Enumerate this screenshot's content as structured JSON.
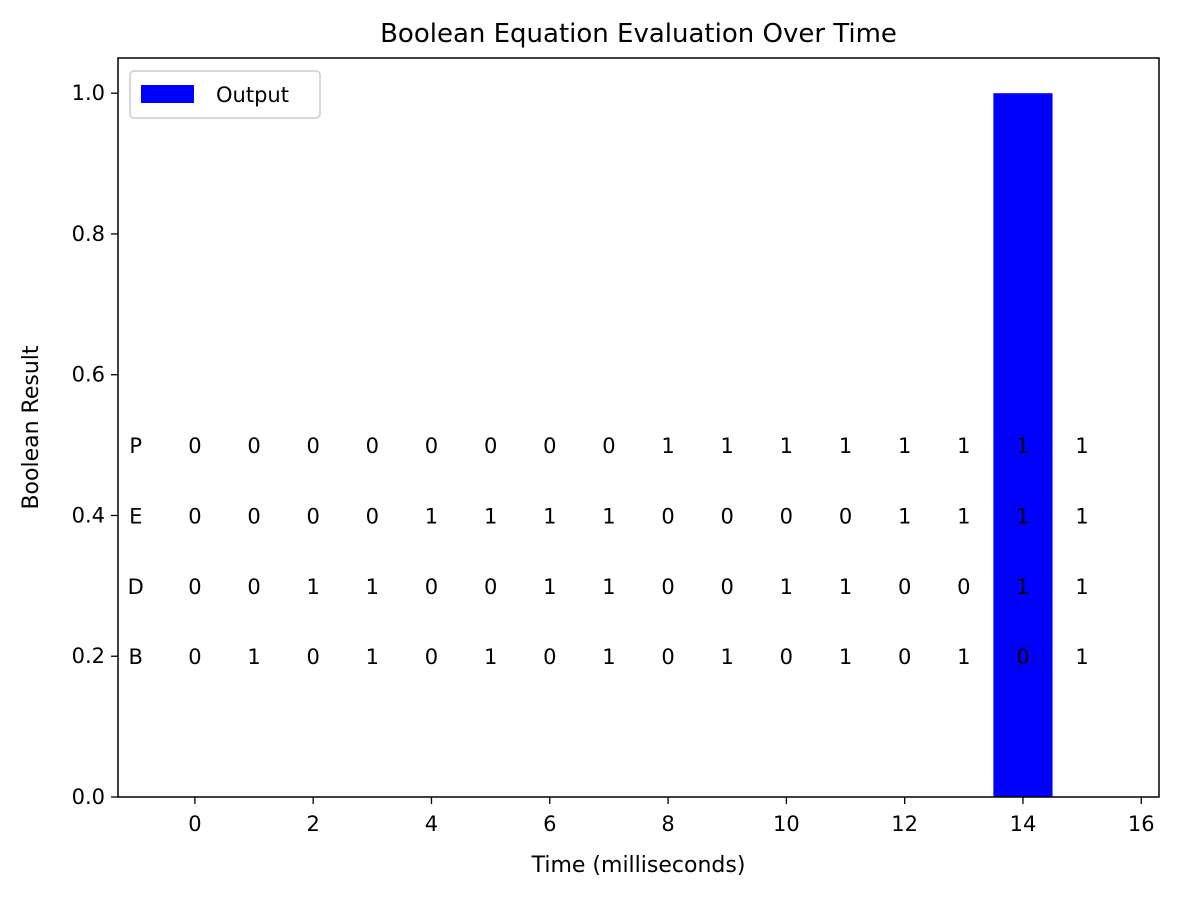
{
  "chart_data": {
    "type": "bar",
    "title": "Boolean Equation Evaluation Over Time",
    "xlabel": "Time (milliseconds)",
    "ylabel": "Boolean Result",
    "x": [
      0,
      1,
      2,
      3,
      4,
      5,
      6,
      7,
      8,
      9,
      10,
      11,
      12,
      13,
      14,
      15
    ],
    "series": [
      {
        "name": "Output",
        "color": "#0000ff",
        "values": [
          0,
          0,
          0,
          0,
          0,
          0,
          0,
          0,
          0,
          0,
          0,
          0,
          0,
          0,
          1,
          0
        ]
      }
    ],
    "xlim": [
      -1.3,
      16.3
    ],
    "ylim": [
      0,
      1.05
    ],
    "xticks": [
      0,
      2,
      4,
      6,
      8,
      10,
      12,
      14,
      16
    ],
    "yticks": [
      "0.0",
      "0.2",
      "0.4",
      "0.6",
      "0.8",
      "1.0"
    ],
    "grid": false,
    "legend": "top-left",
    "annotations": [
      {
        "label": "P",
        "y": 0.5,
        "values": [
          0,
          0,
          0,
          0,
          0,
          0,
          0,
          0,
          1,
          1,
          1,
          1,
          1,
          1,
          1,
          1
        ]
      },
      {
        "label": "E",
        "y": 0.4,
        "values": [
          0,
          0,
          0,
          0,
          1,
          1,
          1,
          1,
          0,
          0,
          0,
          0,
          1,
          1,
          1,
          1
        ]
      },
      {
        "label": "D",
        "y": 0.3,
        "values": [
          0,
          0,
          1,
          1,
          0,
          0,
          1,
          1,
          0,
          0,
          1,
          1,
          0,
          0,
          1,
          1
        ]
      },
      {
        "label": "B",
        "y": 0.2,
        "values": [
          0,
          1,
          0,
          1,
          0,
          1,
          0,
          1,
          0,
          1,
          0,
          1,
          0,
          1,
          0,
          1
        ]
      }
    ]
  }
}
